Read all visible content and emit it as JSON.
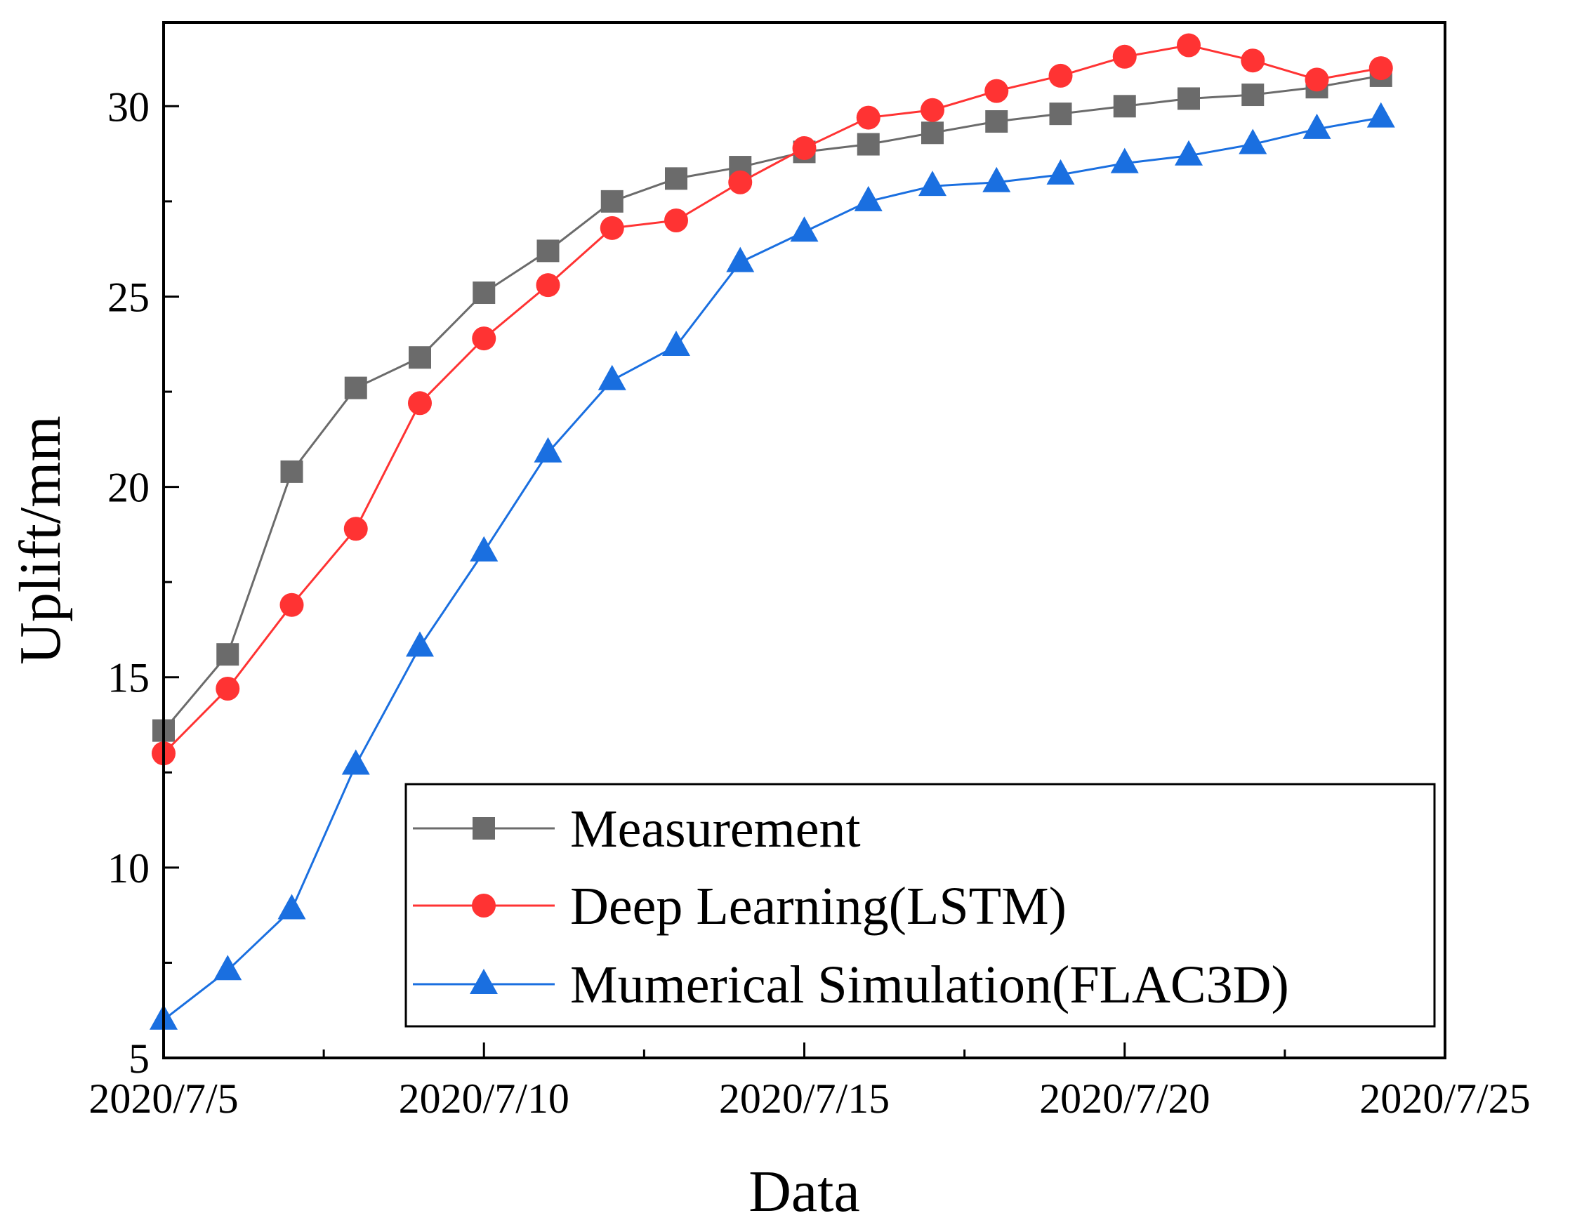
{
  "chart_data": {
    "type": "line",
    "title": "",
    "xlabel": "Data",
    "ylabel": "Uplift/mm",
    "x_tick_labels": [
      "2020/7/5",
      "2020/7/10",
      "2020/7/15",
      "2020/7/20",
      "2020/7/25"
    ],
    "y_tick_labels": [
      "5",
      "10",
      "15",
      "20",
      "25",
      "30"
    ],
    "xlim": [
      5,
      25
    ],
    "ylim": [
      5,
      32.2
    ],
    "x": [
      5,
      6,
      7,
      8,
      9,
      10,
      11,
      12,
      13,
      14,
      15,
      16,
      17,
      18,
      19,
      20,
      21,
      22,
      23,
      24
    ],
    "series": [
      {
        "name": "Measurement",
        "color": "#6b6b6b",
        "marker": "square",
        "values": [
          13.6,
          15.6,
          20.4,
          22.6,
          23.4,
          25.1,
          26.2,
          27.5,
          28.1,
          28.4,
          28.8,
          29.0,
          29.3,
          29.6,
          29.8,
          30.0,
          30.2,
          30.3,
          30.5,
          30.8
        ]
      },
      {
        "name": "Deep Learning(LSTM)",
        "color": "#ff3333",
        "marker": "circle",
        "values": [
          13.0,
          14.7,
          16.9,
          18.9,
          22.2,
          23.9,
          25.3,
          26.8,
          27.0,
          28.0,
          28.9,
          29.7,
          29.9,
          30.4,
          30.8,
          31.3,
          31.6,
          31.2,
          30.7,
          31.0
        ]
      },
      {
        "name": "Mumerical Simulation(FLAC3D)",
        "color": "#1a6fe0",
        "marker": "triangle",
        "values": [
          6.0,
          7.3,
          8.9,
          12.7,
          15.8,
          18.3,
          20.9,
          22.8,
          23.7,
          25.9,
          26.7,
          27.5,
          27.9,
          28.0,
          28.2,
          28.5,
          28.7,
          29.0,
          29.4,
          29.7
        ]
      }
    ],
    "legend_position": "bottom-right",
    "grid": false
  }
}
